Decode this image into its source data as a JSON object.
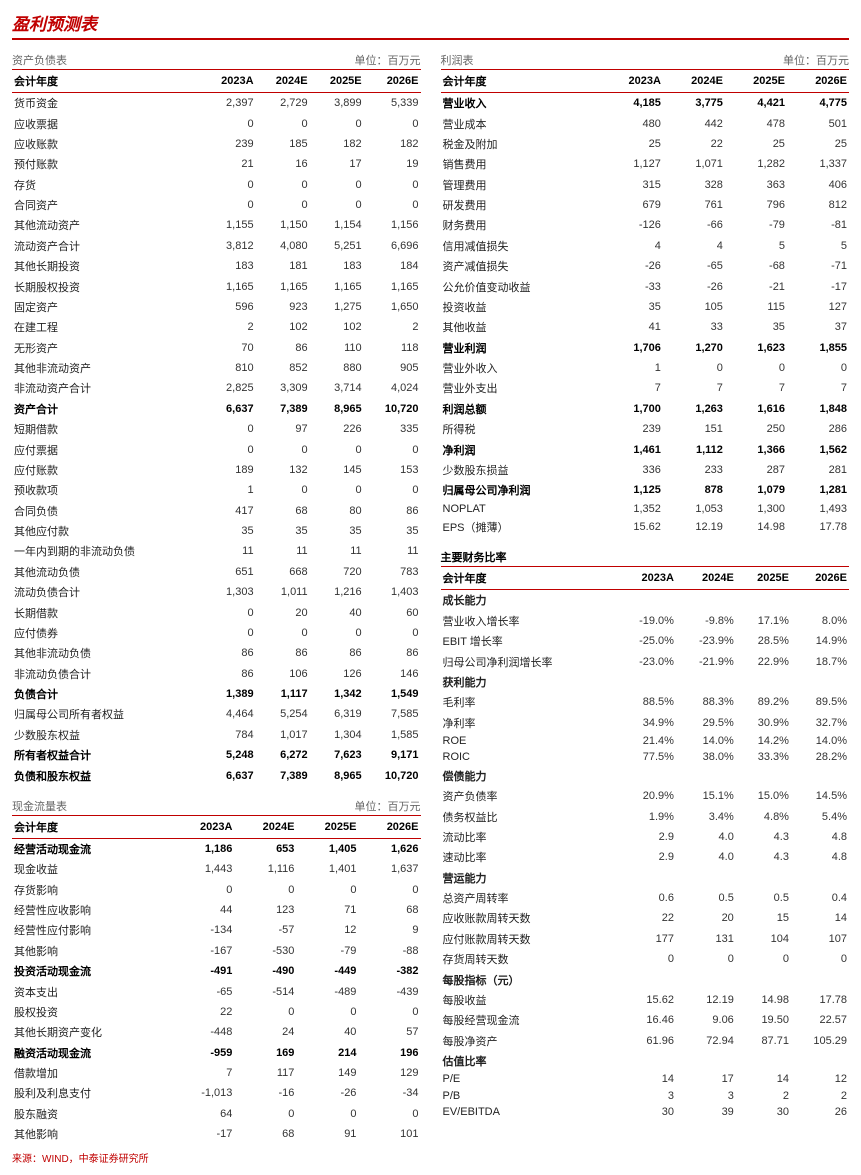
{
  "title": "盈利预测表",
  "unit": "单位：百万元",
  "years": [
    "2023A",
    "2024E",
    "2025E",
    "2026E"
  ],
  "year_label": "会计年度",
  "source": "来源：WIND，中泰证券研究所",
  "balance": {
    "title": "资产负债表",
    "rows": [
      {
        "l": "货币资金",
        "v": [
          "2,397",
          "2,729",
          "3,899",
          "5,339"
        ]
      },
      {
        "l": "应收票据",
        "v": [
          "0",
          "0",
          "0",
          "0"
        ]
      },
      {
        "l": "应收账款",
        "v": [
          "239",
          "185",
          "182",
          "182"
        ]
      },
      {
        "l": "预付账款",
        "v": [
          "21",
          "16",
          "17",
          "19"
        ]
      },
      {
        "l": "存货",
        "v": [
          "0",
          "0",
          "0",
          "0"
        ]
      },
      {
        "l": "合同资产",
        "v": [
          "0",
          "0",
          "0",
          "0"
        ]
      },
      {
        "l": "其他流动资产",
        "v": [
          "1,155",
          "1,150",
          "1,154",
          "1,156"
        ]
      },
      {
        "l": "流动资产合计",
        "v": [
          "3,812",
          "4,080",
          "5,251",
          "6,696"
        ]
      },
      {
        "l": "其他长期投资",
        "v": [
          "183",
          "181",
          "183",
          "184"
        ]
      },
      {
        "l": "长期股权投资",
        "v": [
          "1,165",
          "1,165",
          "1,165",
          "1,165"
        ]
      },
      {
        "l": "固定资产",
        "v": [
          "596",
          "923",
          "1,275",
          "1,650"
        ]
      },
      {
        "l": "在建工程",
        "v": [
          "2",
          "102",
          "102",
          "2"
        ]
      },
      {
        "l": "无形资产",
        "v": [
          "70",
          "86",
          "110",
          "118"
        ]
      },
      {
        "l": "其他非流动资产",
        "v": [
          "810",
          "852",
          "880",
          "905"
        ]
      },
      {
        "l": "非流动资产合计",
        "v": [
          "2,825",
          "3,309",
          "3,714",
          "4,024"
        ]
      },
      {
        "l": "资产合计",
        "v": [
          "6,637",
          "7,389",
          "8,965",
          "10,720"
        ],
        "b": true
      },
      {
        "l": "短期借款",
        "v": [
          "0",
          "97",
          "226",
          "335"
        ]
      },
      {
        "l": "应付票据",
        "v": [
          "0",
          "0",
          "0",
          "0"
        ]
      },
      {
        "l": "应付账款",
        "v": [
          "189",
          "132",
          "145",
          "153"
        ]
      },
      {
        "l": "预收款项",
        "v": [
          "1",
          "0",
          "0",
          "0"
        ]
      },
      {
        "l": "合同负债",
        "v": [
          "417",
          "68",
          "80",
          "86"
        ]
      },
      {
        "l": "其他应付款",
        "v": [
          "35",
          "35",
          "35",
          "35"
        ]
      },
      {
        "l": "一年内到期的非流动负债",
        "v": [
          "11",
          "11",
          "11",
          "11"
        ]
      },
      {
        "l": "其他流动负债",
        "v": [
          "651",
          "668",
          "720",
          "783"
        ]
      },
      {
        "l": "流动负债合计",
        "v": [
          "1,303",
          "1,011",
          "1,216",
          "1,403"
        ]
      },
      {
        "l": "长期借款",
        "v": [
          "0",
          "20",
          "40",
          "60"
        ]
      },
      {
        "l": "应付债券",
        "v": [
          "0",
          "0",
          "0",
          "0"
        ]
      },
      {
        "l": "其他非流动负债",
        "v": [
          "86",
          "86",
          "86",
          "86"
        ]
      },
      {
        "l": "非流动负债合计",
        "v": [
          "86",
          "106",
          "126",
          "146"
        ]
      },
      {
        "l": "负债合计",
        "v": [
          "1,389",
          "1,117",
          "1,342",
          "1,549"
        ],
        "b": true
      },
      {
        "l": "归属母公司所有者权益",
        "v": [
          "4,464",
          "5,254",
          "6,319",
          "7,585"
        ]
      },
      {
        "l": "少数股东权益",
        "v": [
          "784",
          "1,017",
          "1,304",
          "1,585"
        ]
      },
      {
        "l": "所有者权益合计",
        "v": [
          "5,248",
          "6,272",
          "7,623",
          "9,171"
        ],
        "b": true
      },
      {
        "l": "负债和股东权益",
        "v": [
          "6,637",
          "7,389",
          "8,965",
          "10,720"
        ],
        "b": true
      }
    ]
  },
  "cashflow": {
    "title": "现金流量表",
    "rows": [
      {
        "l": "经营活动现金流",
        "v": [
          "1,186",
          "653",
          "1,405",
          "1,626"
        ],
        "b": true
      },
      {
        "l": "现金收益",
        "v": [
          "1,443",
          "1,116",
          "1,401",
          "1,637"
        ]
      },
      {
        "l": "存货影响",
        "v": [
          "0",
          "0",
          "0",
          "0"
        ]
      },
      {
        "l": "经营性应收影响",
        "v": [
          "44",
          "123",
          "71",
          "68"
        ]
      },
      {
        "l": "经营性应付影响",
        "v": [
          "-134",
          "-57",
          "12",
          "9"
        ]
      },
      {
        "l": "其他影响",
        "v": [
          "-167",
          "-530",
          "-79",
          "-88"
        ]
      },
      {
        "l": "投资活动现金流",
        "v": [
          "-491",
          "-490",
          "-449",
          "-382"
        ],
        "b": true
      },
      {
        "l": "资本支出",
        "v": [
          "-65",
          "-514",
          "-489",
          "-439"
        ]
      },
      {
        "l": "股权投资",
        "v": [
          "22",
          "0",
          "0",
          "0"
        ]
      },
      {
        "l": "其他长期资产变化",
        "v": [
          "-448",
          "24",
          "40",
          "57"
        ]
      },
      {
        "l": "融资活动现金流",
        "v": [
          "-959",
          "169",
          "214",
          "196"
        ],
        "b": true
      },
      {
        "l": "借款增加",
        "v": [
          "7",
          "117",
          "149",
          "129"
        ]
      },
      {
        "l": "股利及利息支付",
        "v": [
          "-1,013",
          "-16",
          "-26",
          "-34"
        ]
      },
      {
        "l": "股东融资",
        "v": [
          "64",
          "0",
          "0",
          "0"
        ]
      },
      {
        "l": "其他影响",
        "v": [
          "-17",
          "68",
          "91",
          "101"
        ]
      }
    ]
  },
  "income": {
    "title": "利润表",
    "rows": [
      {
        "l": "营业收入",
        "v": [
          "4,185",
          "3,775",
          "4,421",
          "4,775"
        ],
        "b": true
      },
      {
        "l": "营业成本",
        "v": [
          "480",
          "442",
          "478",
          "501"
        ]
      },
      {
        "l": "税金及附加",
        "v": [
          "25",
          "22",
          "25",
          "25"
        ]
      },
      {
        "l": "销售费用",
        "v": [
          "1,127",
          "1,071",
          "1,282",
          "1,337"
        ]
      },
      {
        "l": "管理费用",
        "v": [
          "315",
          "328",
          "363",
          "406"
        ]
      },
      {
        "l": "研发费用",
        "v": [
          "679",
          "761",
          "796",
          "812"
        ]
      },
      {
        "l": "财务费用",
        "v": [
          "-126",
          "-66",
          "-79",
          "-81"
        ]
      },
      {
        "l": "信用减值损失",
        "v": [
          "4",
          "4",
          "5",
          "5"
        ]
      },
      {
        "l": "资产减值损失",
        "v": [
          "-26",
          "-65",
          "-68",
          "-71"
        ]
      },
      {
        "l": "公允价值变动收益",
        "v": [
          "-33",
          "-26",
          "-21",
          "-17"
        ]
      },
      {
        "l": "投资收益",
        "v": [
          "35",
          "105",
          "115",
          "127"
        ]
      },
      {
        "l": "其他收益",
        "v": [
          "41",
          "33",
          "35",
          "37"
        ]
      },
      {
        "l": "营业利润",
        "v": [
          "1,706",
          "1,270",
          "1,623",
          "1,855"
        ],
        "b": true
      },
      {
        "l": "营业外收入",
        "v": [
          "1",
          "0",
          "0",
          "0"
        ]
      },
      {
        "l": "营业外支出",
        "v": [
          "7",
          "7",
          "7",
          "7"
        ]
      },
      {
        "l": "利润总额",
        "v": [
          "1,700",
          "1,263",
          "1,616",
          "1,848"
        ],
        "b": true
      },
      {
        "l": "所得税",
        "v": [
          "239",
          "151",
          "250",
          "286"
        ]
      },
      {
        "l": "净利润",
        "v": [
          "1,461",
          "1,112",
          "1,366",
          "1,562"
        ],
        "b": true
      },
      {
        "l": "少数股东损益",
        "v": [
          "336",
          "233",
          "287",
          "281"
        ]
      },
      {
        "l": "归属母公司净利润",
        "v": [
          "1,125",
          "878",
          "1,079",
          "1,281"
        ],
        "b": true
      },
      {
        "l": "NOPLAT",
        "v": [
          "1,352",
          "1,053",
          "1,300",
          "1,493"
        ]
      },
      {
        "l": "EPS（摊薄）",
        "v": [
          "15.62",
          "12.19",
          "14.98",
          "17.78"
        ]
      }
    ]
  },
  "ratios": {
    "title": "主要财务比率",
    "groups": [
      {
        "cat": "成长能力",
        "rows": [
          {
            "l": "营业收入增长率",
            "v": [
              "-19.0%",
              "-9.8%",
              "17.1%",
              "8.0%"
            ]
          },
          {
            "l": "EBIT 增长率",
            "v": [
              "-25.0%",
              "-23.9%",
              "28.5%",
              "14.9%"
            ]
          },
          {
            "l": "归母公司净利润增长率",
            "v": [
              "-23.0%",
              "-21.9%",
              "22.9%",
              "18.7%"
            ]
          }
        ]
      },
      {
        "cat": "获利能力",
        "rows": [
          {
            "l": "毛利率",
            "v": [
              "88.5%",
              "88.3%",
              "89.2%",
              "89.5%"
            ]
          },
          {
            "l": "净利率",
            "v": [
              "34.9%",
              "29.5%",
              "30.9%",
              "32.7%"
            ]
          },
          {
            "l": "ROE",
            "v": [
              "21.4%",
              "14.0%",
              "14.2%",
              "14.0%"
            ]
          },
          {
            "l": "ROIC",
            "v": [
              "77.5%",
              "38.0%",
              "33.3%",
              "28.2%"
            ]
          }
        ]
      },
      {
        "cat": "偿债能力",
        "rows": [
          {
            "l": "资产负债率",
            "v": [
              "20.9%",
              "15.1%",
              "15.0%",
              "14.5%"
            ]
          },
          {
            "l": "债务权益比",
            "v": [
              "1.9%",
              "3.4%",
              "4.8%",
              "5.4%"
            ]
          },
          {
            "l": "流动比率",
            "v": [
              "2.9",
              "4.0",
              "4.3",
              "4.8"
            ]
          },
          {
            "l": "速动比率",
            "v": [
              "2.9",
              "4.0",
              "4.3",
              "4.8"
            ]
          }
        ]
      },
      {
        "cat": "营运能力",
        "rows": [
          {
            "l": "总资产周转率",
            "v": [
              "0.6",
              "0.5",
              "0.5",
              "0.4"
            ]
          },
          {
            "l": "应收账款周转天数",
            "v": [
              "22",
              "20",
              "15",
              "14"
            ]
          },
          {
            "l": "应付账款周转天数",
            "v": [
              "177",
              "131",
              "104",
              "107"
            ]
          },
          {
            "l": "存货周转天数",
            "v": [
              "0",
              "0",
              "0",
              "0"
            ]
          }
        ]
      },
      {
        "cat": "每股指标（元）",
        "rows": [
          {
            "l": "每股收益",
            "v": [
              "15.62",
              "12.19",
              "14.98",
              "17.78"
            ]
          },
          {
            "l": "每股经营现金流",
            "v": [
              "16.46",
              "9.06",
              "19.50",
              "22.57"
            ]
          },
          {
            "l": "每股净资产",
            "v": [
              "61.96",
              "72.94",
              "87.71",
              "105.29"
            ]
          }
        ]
      },
      {
        "cat": "估值比率",
        "rows": [
          {
            "l": "P/E",
            "v": [
              "14",
              "17",
              "14",
              "12"
            ]
          },
          {
            "l": "P/B",
            "v": [
              "3",
              "3",
              "2",
              "2"
            ]
          },
          {
            "l": "EV/EBITDA",
            "v": [
              "30",
              "39",
              "30",
              "26"
            ]
          }
        ]
      }
    ]
  }
}
